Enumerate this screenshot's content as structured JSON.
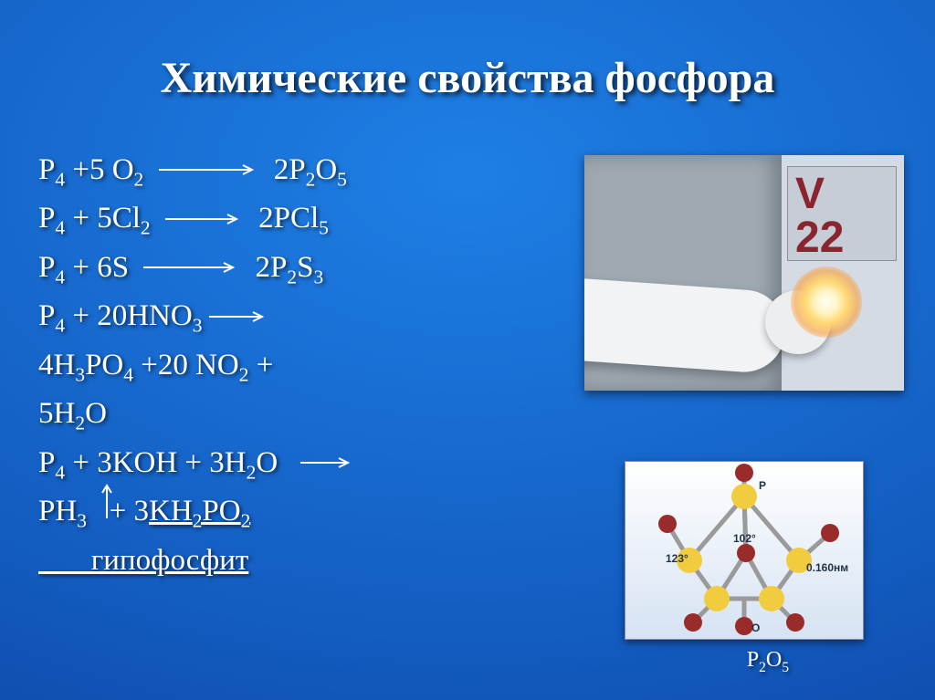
{
  "title": "Химические свойства фосфора",
  "equations": {
    "line1": {
      "lhs": "P<sub>4</sub> +5 O<sub>2</sub>",
      "rhs": "2P<sub>2</sub>O<sub>5</sub>"
    },
    "line2": {
      "lhs": "P<sub>4</sub> + 5Cl<sub>2</sub>",
      "rhs": "2PCl<sub>5</sub>"
    },
    "line3": {
      "lhs": "P<sub>4</sub> + 6S",
      "rhs": "2P<sub>2</sub>S<sub>3</sub>"
    },
    "line4": {
      "lhs": "P<sub>4</sub> + 20HNO<sub>3</sub>"
    },
    "line5": {
      "text": "4H<sub>3</sub>PO<sub>4</sub> +20 NO<sub>2</sub> +"
    },
    "line6": {
      "text": "5H<sub>2</sub>O"
    },
    "line7": {
      "lhs": "P<sub>4</sub> + 3KOH + 3H<sub>2</sub>O"
    },
    "line8": {
      "text": "PH<sub>3</sub>&nbsp;&nbsp;&nbsp;+ 3<u>KH<sub>2</sub>PO<sub>2</sub></u>"
    },
    "line9": {
      "text": "<u>&nbsp;&nbsp;&nbsp;&nbsp;&nbsp;&nbsp;&nbsp;гипофосфит</u>"
    }
  },
  "photo": {
    "sign_text": "V\n22"
  },
  "molecule": {
    "caption": "P2O5",
    "label_top": "P",
    "label_angle_left": "123°",
    "label_angle_mid": "102°",
    "label_bond": "0.160нм",
    "label_bottom": "O",
    "colors": {
      "P": "#f0cc3e",
      "O": "#9a2b2b",
      "bond": "#9a9a9a"
    }
  },
  "colors": {
    "arrow": "#ffffff",
    "text": "#ffffff"
  }
}
